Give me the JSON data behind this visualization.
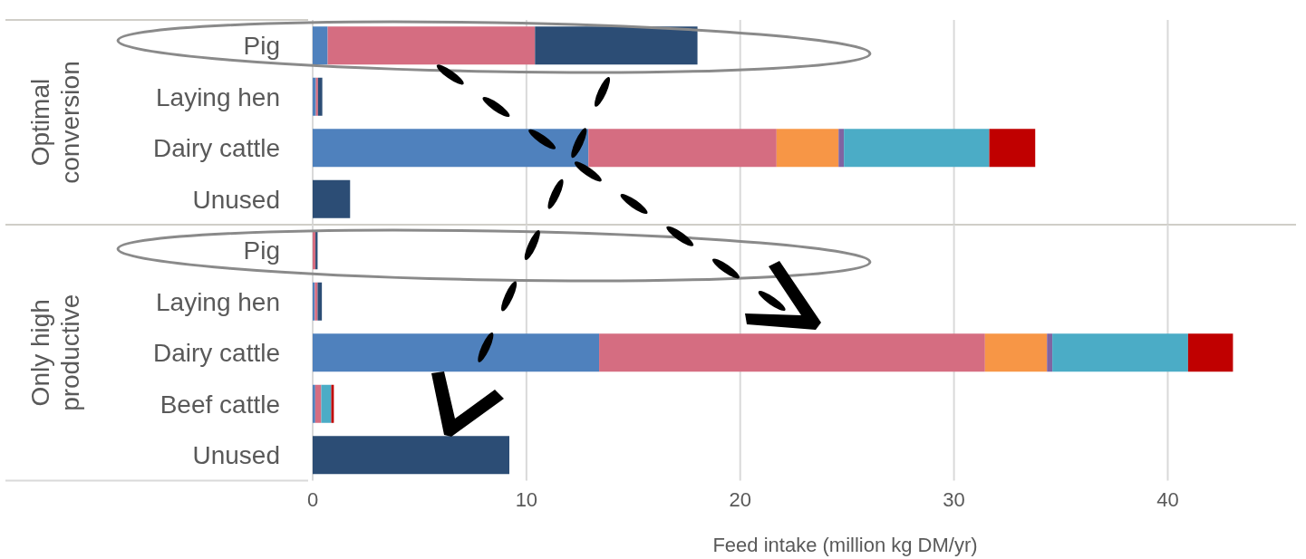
{
  "chart_data": [
    {
      "type": "bar",
      "orientation": "horizontal",
      "stacked": true,
      "ylabel": "Optimal conversion",
      "categories": [
        "Pig",
        "Laying hen",
        "Dairy cattle",
        "Unused"
      ],
      "series": [
        {
          "color": "#4f81bd",
          "values": [
            0.7,
            0.15,
            12.9,
            null
          ]
        },
        {
          "color": "#d56d81",
          "values": [
            9.7,
            0.1,
            8.8,
            null
          ]
        },
        {
          "color": "#f79646",
          "values": [
            null,
            null,
            2.9,
            null
          ]
        },
        {
          "color": "#8064a2",
          "values": [
            null,
            null,
            0.25,
            null
          ]
        },
        {
          "color": "#4bacc6",
          "values": [
            null,
            null,
            6.8,
            null
          ]
        },
        {
          "color": "#c00000",
          "values": [
            null,
            null,
            2.15,
            null
          ]
        },
        {
          "color": "#2c4d75",
          "values": [
            7.6,
            0.2,
            null,
            1.75
          ]
        }
      ],
      "xlim": [
        0,
        46
      ],
      "xticks": [
        0,
        10,
        20,
        30,
        40
      ],
      "grid": "x",
      "tick_labels": "y"
    },
    {
      "type": "bar",
      "orientation": "horizontal",
      "stacked": true,
      "ylabel": "Only high productive",
      "xlabel": "Feed intake (million kg DM/yr)",
      "categories": [
        "Pig",
        "Laying hen",
        "Dairy cattle",
        "Beef cattle",
        "Unused"
      ],
      "series": [
        {
          "color": "#4f81bd",
          "values": [
            null,
            0.1,
            13.4,
            0.12,
            null
          ]
        },
        {
          "color": "#d56d81",
          "values": [
            0.13,
            0.13,
            18.05,
            0.28,
            null
          ]
        },
        {
          "color": "#f79646",
          "values": [
            null,
            null,
            2.9,
            null,
            null
          ]
        },
        {
          "color": "#8064a2",
          "values": [
            null,
            null,
            0.25,
            null,
            null
          ]
        },
        {
          "color": "#4bacc6",
          "values": [
            null,
            null,
            6.35,
            0.47,
            null
          ]
        },
        {
          "color": "#c00000",
          "values": [
            null,
            null,
            2.1,
            0.12,
            null
          ]
        },
        {
          "color": "#2c4d75",
          "values": [
            0.1,
            0.2,
            null,
            null,
            9.2
          ]
        }
      ],
      "xlim": [
        0,
        46
      ],
      "xticks": [
        0,
        10,
        20,
        30,
        40
      ],
      "grid": "x"
    }
  ]
}
